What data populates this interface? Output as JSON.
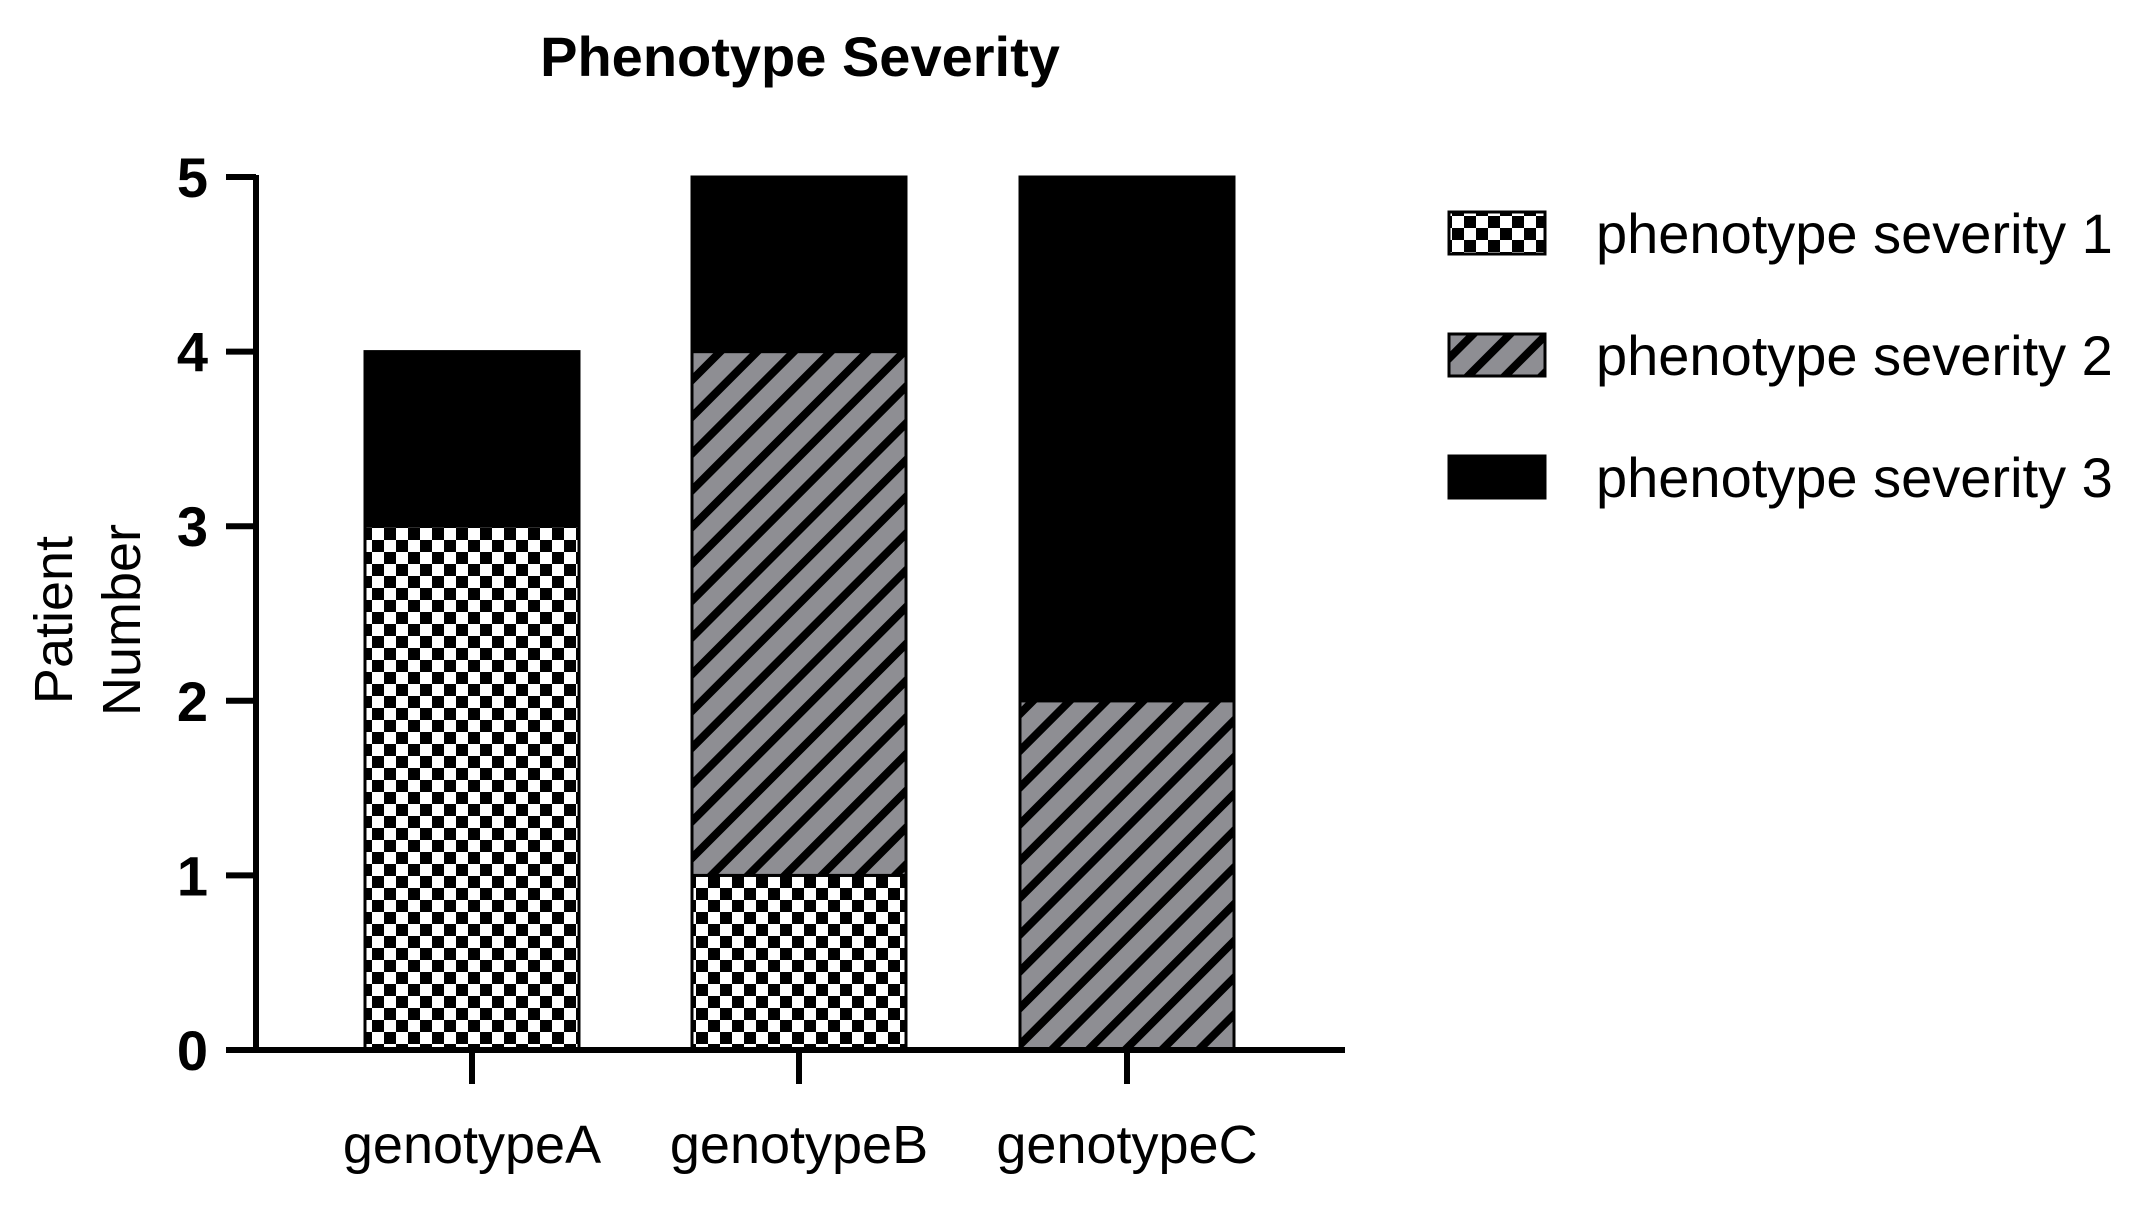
{
  "chart_data": {
    "type": "bar",
    "stacked": true,
    "title": "Phenotype Severity",
    "xlabel": "",
    "ylabel": [
      "Patient",
      "Number"
    ],
    "categories": [
      "genotypeA",
      "genotypeB",
      "genotypeC"
    ],
    "series": [
      {
        "name": "phenotype severity 1",
        "values": [
          3,
          1,
          0
        ],
        "pattern": "checker"
      },
      {
        "name": "phenotype severity 2",
        "values": [
          0,
          3,
          2
        ],
        "pattern": "diagonal-hatch"
      },
      {
        "name": "phenotype severity 3",
        "values": [
          1,
          1,
          3
        ],
        "pattern": "solid"
      }
    ],
    "ylim": [
      0,
      5
    ],
    "yticks": [
      "0",
      "1",
      "2",
      "3",
      "4",
      "5"
    ],
    "grid": false,
    "legend_position": "right",
    "colors": {
      "solid": "#000000",
      "hatch_fill": "#8e8e93",
      "hatch_line": "#000000",
      "checker_dark": "#000000",
      "checker_light": "#ffffff"
    }
  }
}
